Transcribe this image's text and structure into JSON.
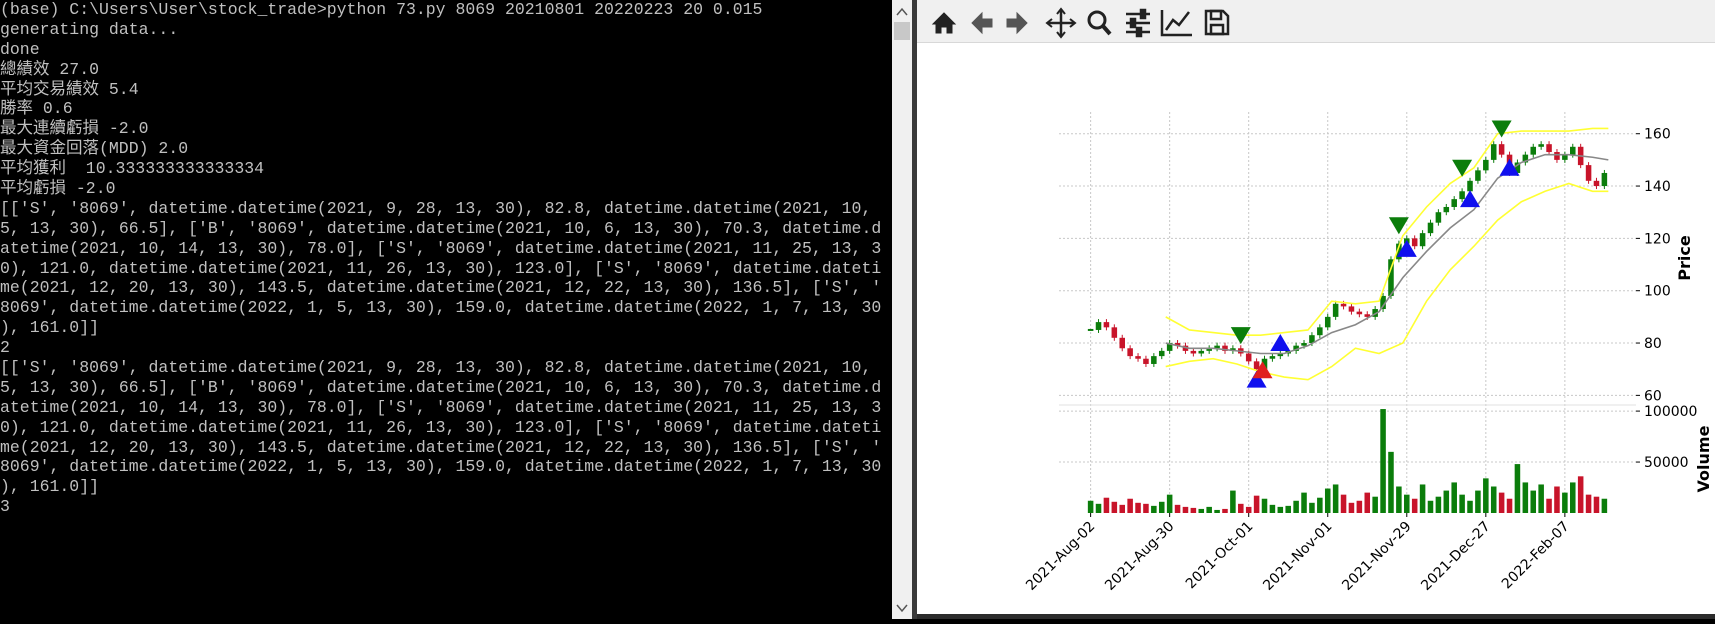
{
  "terminal": {
    "lines": [
      "(base) C:\\Users\\User\\stock_trade>python 73.py 8069 20210801 20220223 20 0.015",
      "generating data...",
      "done",
      "總績效 27.0",
      "平均交易績效 5.4",
      "勝率 0.6",
      "最大連續虧損 -2.0",
      "最大資金回落(MDD) 2.0",
      "平均獲利  10.333333333333334",
      "平均虧損 -2.0",
      "[['S', '8069', datetime.datetime(2021, 9, 28, 13, 30), 82.8, datetime.datetime(2021, 10,",
      "5, 13, 30), 66.5], ['B', '8069', datetime.datetime(2021, 10, 6, 13, 30), 70.3, datetime.d",
      "atetime(2021, 10, 14, 13, 30), 78.0], ['S', '8069', datetime.datetime(2021, 11, 25, 13, 3",
      "0), 121.0, datetime.datetime(2021, 11, 26, 13, 30), 123.0], ['S', '8069', datetime.dateti",
      "me(2021, 12, 20, 13, 30), 143.5, datetime.datetime(2021, 12, 22, 13, 30), 136.5], ['S', '",
      "8069', datetime.datetime(2022, 1, 5, 13, 30), 159.0, datetime.datetime(2022, 1, 7, 13, 30",
      "), 161.0]]",
      "2",
      "[['S', '8069', datetime.datetime(2021, 9, 28, 13, 30), 82.8, datetime.datetime(2021, 10,",
      "5, 13, 30), 66.5], ['B', '8069', datetime.datetime(2021, 10, 6, 13, 30), 70.3, datetime.d",
      "atetime(2021, 10, 14, 13, 30), 78.0], ['S', '8069', datetime.datetime(2021, 11, 25, 13, 3",
      "0), 121.0, datetime.datetime(2021, 11, 26, 13, 30), 123.0], ['S', '8069', datetime.dateti",
      "me(2021, 12, 20, 13, 30), 143.5, datetime.datetime(2021, 12, 22, 13, 30), 136.5], ['S', '",
      "8069', datetime.datetime(2022, 1, 5, 13, 30), 159.0, datetime.datetime(2022, 1, 7, 13, 30",
      "), 161.0]]",
      "3"
    ]
  },
  "chart_data": {
    "type": "candlestick",
    "x": [
      0,
      2,
      4,
      6,
      8,
      10,
      12,
      14,
      16,
      18,
      20,
      22,
      24,
      26,
      28,
      30,
      32,
      34,
      36,
      38,
      40,
      42,
      44,
      46,
      48,
      50,
      52,
      54,
      56,
      58,
      60,
      62,
      64,
      66,
      68,
      70,
      72,
      74,
      76,
      78,
      80,
      82,
      84,
      86,
      88,
      90,
      92,
      94,
      96,
      98,
      100,
      102,
      104,
      106,
      108,
      110,
      112,
      114,
      116,
      118,
      120,
      122,
      124,
      126,
      128,
      130
    ],
    "close": [
      85,
      88,
      86,
      82,
      78,
      75,
      74,
      72,
      75,
      77,
      80,
      79,
      77,
      76,
      77,
      78,
      79,
      77,
      78,
      76,
      73,
      70,
      74,
      75,
      76,
      77,
      79,
      80,
      83,
      86,
      90,
      95,
      94,
      92,
      91,
      90,
      93,
      98,
      112,
      118,
      120,
      117,
      122,
      126,
      130,
      132,
      135,
      138,
      142,
      146,
      150,
      156,
      152,
      145,
      149,
      152,
      155,
      156,
      153,
      150,
      152,
      155,
      148,
      142,
      140,
      145
    ],
    "up_color": "#0b7d0b",
    "down_color": "#c8142a",
    "xlim": [
      -8,
      138
    ],
    "xticks": [
      {
        "value": 0,
        "label": "2021-Aug-02"
      },
      {
        "value": 20,
        "label": "2021-Aug-30"
      },
      {
        "value": 40,
        "label": "2021-Oct-01"
      },
      {
        "value": 60,
        "label": "2021-Nov-01"
      },
      {
        "value": 80,
        "label": "2021-Nov-29"
      },
      {
        "value": 100,
        "label": "2021-Dec-27"
      },
      {
        "value": 120,
        "label": "2022-Feb-07"
      }
    ],
    "ylim": [
      56.7,
      168.3
    ],
    "yticks": [
      60,
      80,
      100,
      120,
      140,
      160
    ],
    "ylabel": "Price",
    "grid": true,
    "bands": {
      "x": [
        19,
        25,
        31,
        37,
        43,
        49,
        55,
        61,
        67,
        73,
        79,
        85,
        91,
        97,
        103,
        109,
        115,
        121,
        127,
        131
      ],
      "lines": [
        {
          "color": "#ffff33",
          "values": [
            90,
            85,
            84,
            83,
            83,
            84,
            85,
            96,
            95,
            96,
            121,
            132,
            141,
            147,
            160,
            161,
            161,
            161,
            162,
            162
          ]
        },
        {
          "color": "#888888",
          "values": [
            80,
            78,
            78,
            77,
            76,
            76,
            79,
            84,
            87,
            92,
            105,
            115,
            124,
            131,
            143,
            149,
            152,
            152,
            151,
            150
          ]
        },
        {
          "color": "#ffff33",
          "values": [
            71,
            73,
            74,
            72,
            69,
            67,
            66,
            71,
            78,
            76,
            80,
            96,
            108,
            117,
            127,
            134,
            138,
            141,
            138,
            138
          ]
        }
      ]
    },
    "markers": [
      {
        "shape": "down",
        "color": "#0b7d0b",
        "x": [
          38,
          78,
          94,
          104
        ],
        "values": [
          83,
          125,
          147,
          162
        ]
      },
      {
        "shape": "up",
        "color": "#1010ee",
        "x": [
          42,
          48,
          80,
          96,
          106
        ],
        "values": [
          66,
          80,
          116,
          135,
          147
        ]
      },
      {
        "shape": "up",
        "color": "#e02020",
        "x": [
          43.5
        ],
        "values": [
          69.6
        ]
      }
    ],
    "volume": {
      "values": [
        12000,
        9000,
        15000,
        11000,
        8000,
        14000,
        10000,
        9000,
        7000,
        11000,
        18000,
        8000,
        6000,
        5000,
        4000,
        6000,
        3000,
        4000,
        22000,
        9000,
        6000,
        17000,
        14000,
        8000,
        6000,
        7000,
        12000,
        20000,
        10000,
        15000,
        24000,
        28000,
        18000,
        10000,
        12000,
        20000,
        16000,
        102000,
        60000,
        26000,
        18000,
        14000,
        28000,
        12000,
        16000,
        22000,
        30000,
        18000,
        12000,
        22000,
        34000,
        26000,
        20000,
        14000,
        48000,
        30000,
        22000,
        28000,
        14000,
        26000,
        20000,
        30000,
        36000,
        18000,
        16000,
        14000
      ],
      "ylim": [
        0,
        105000
      ],
      "yticks": [
        50000,
        100000
      ],
      "ylabel": "Volume"
    }
  }
}
